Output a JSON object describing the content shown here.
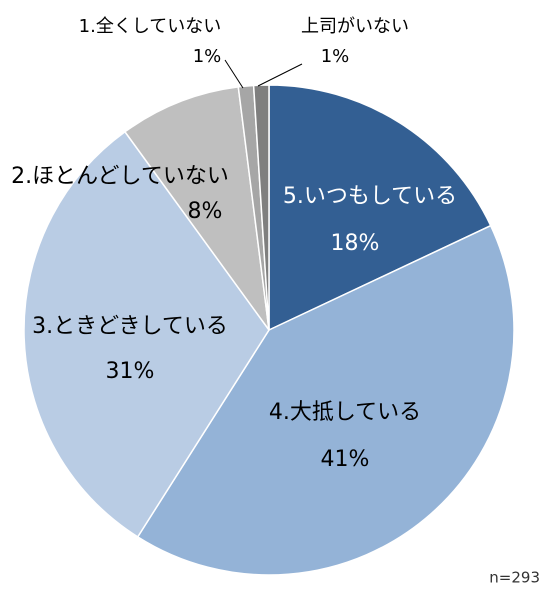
{
  "chart_data": {
    "type": "pie",
    "categories": [
      "5.いつもしている",
      "4.大抵している",
      "3.ときどきしている",
      "2.ほとんどしていない",
      "1.全くしていない",
      "上司がいない"
    ],
    "values": [
      18,
      41,
      31,
      8,
      1,
      1
    ],
    "value_labels": [
      "18%",
      "41%",
      "31%",
      "8%",
      "1%",
      "1%"
    ],
    "colors": [
      "#335f93",
      "#94b3d7",
      "#b9cce4",
      "#bfbfbf",
      "#a6a6a6",
      "#7f7f7f"
    ],
    "annotation": "n=293"
  }
}
